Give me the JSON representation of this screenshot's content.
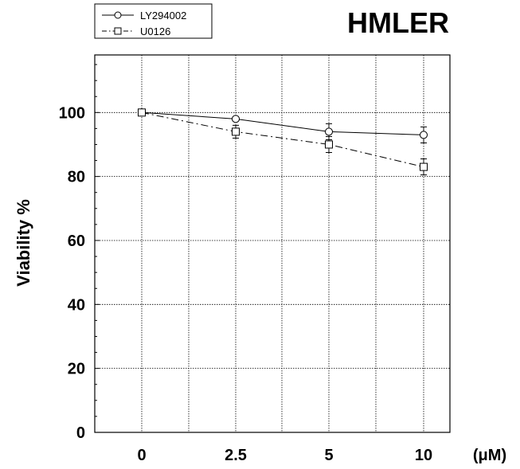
{
  "chart_data": {
    "type": "line",
    "title": "HMLER",
    "ylabel": "Viability %",
    "xunit": "(μM)",
    "categories": [
      "0",
      "2.5",
      "5",
      "10"
    ],
    "yticks": [
      "0",
      "20",
      "40",
      "60",
      "80",
      "100"
    ],
    "ylim": [
      0,
      118
    ],
    "grid": true,
    "legend_position": "top-left",
    "series": [
      {
        "name": "LY294002",
        "marker": "circle",
        "line_style": "solid",
        "values": [
          100,
          98,
          94,
          93
        ],
        "errors": [
          0,
          0,
          2.5,
          2.5
        ]
      },
      {
        "name": "U0126",
        "marker": "square",
        "line_style": "dashdot",
        "values": [
          100,
          94,
          90,
          83
        ],
        "errors": [
          0,
          2,
          2.5,
          2.5
        ]
      }
    ]
  }
}
